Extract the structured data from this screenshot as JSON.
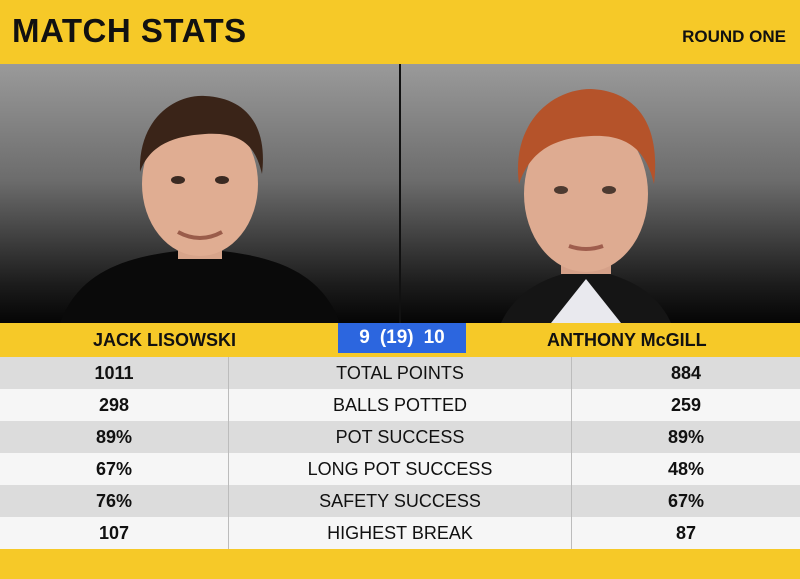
{
  "header": {
    "title": "MATCH STATS",
    "round": "ROUND ONE"
  },
  "players": {
    "left": {
      "name": "JACK LISOWSKI"
    },
    "right": {
      "name": "ANTHONY McGILL"
    }
  },
  "score": {
    "left": "9",
    "middle": "(19)",
    "right": "10"
  },
  "stats": [
    {
      "label": "TOTAL POINTS",
      "left": "1011",
      "right": "884"
    },
    {
      "label": "BALLS POTTED",
      "left": "298",
      "right": "259"
    },
    {
      "label": "POT SUCCESS",
      "left": "89%",
      "right": "89%"
    },
    {
      "label": "LONG POT SUCCESS",
      "left": "67%",
      "right": "48%"
    },
    {
      "label": "SAFETY SUCCESS",
      "left": "76%",
      "right": "67%"
    },
    {
      "label": "HIGHEST BREAK",
      "left": "107",
      "right": "87"
    }
  ],
  "colors": {
    "accent_yellow": "#f6c928",
    "score_blue": "#2c66df"
  }
}
